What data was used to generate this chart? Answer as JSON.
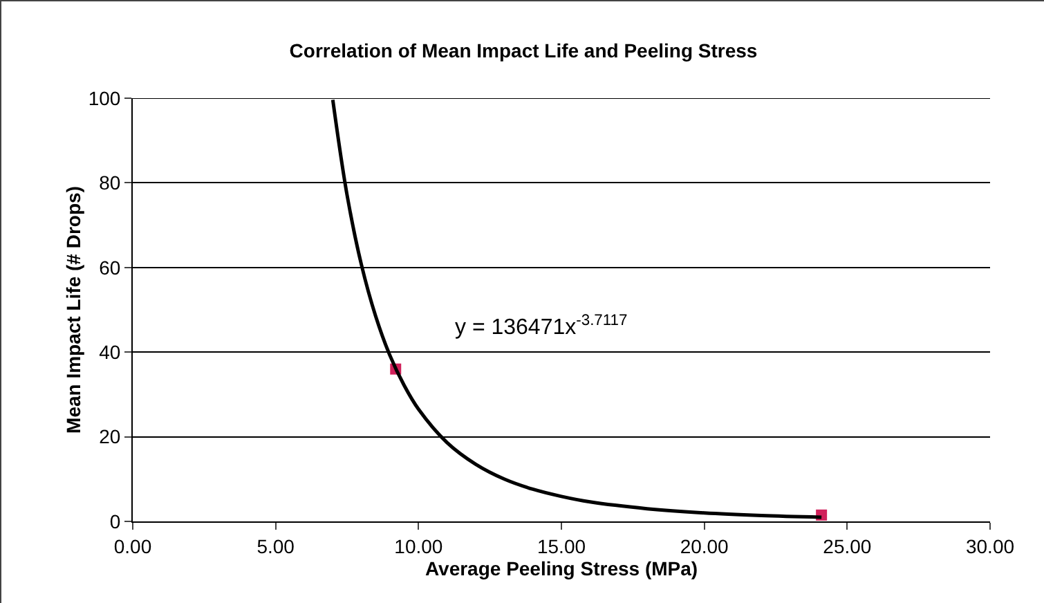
{
  "chart_data": {
    "type": "scatter",
    "title": "Correlation of Mean Impact Life and Peeling Stress",
    "xlabel": "Average Peeling Stress (MPa)",
    "ylabel": "Mean Impact Life (# Drops)",
    "series": [
      {
        "color": "#d0205a",
        "x": [
          9.2,
          24.1
        ],
        "values": [
          36,
          1.5
        ],
        "marker": "square"
      },
      {
        "type": "line",
        "color": "#000000",
        "x": [
          7.0,
          7.5,
          8,
          8.5,
          9,
          9.5,
          10,
          11,
          12,
          13,
          14,
          15,
          16,
          18,
          20,
          22,
          24.1
        ],
        "values": [
          99.6,
          77.1,
          60.7,
          48.5,
          39.2,
          32.1,
          26.5,
          18.6,
          13.5,
          10.0,
          7.6,
          5.9,
          4.6,
          3.0,
          2.0,
          1.4,
          1.0
        ],
        "marker": "none"
      }
    ],
    "annotations": [
      "y = 136471x$^{-3.7117}$"
    ],
    "xlim": [
      0,
      30
    ],
    "xticks": [
      {
        "value": 0,
        "label": "0.00"
      },
      {
        "value": 5,
        "label": "5.00"
      },
      {
        "value": 10,
        "label": "10.00"
      },
      {
        "value": 15,
        "label": "15.00"
      },
      {
        "value": 20,
        "label": "20.00"
      },
      {
        "value": 25,
        "label": "25.00"
      },
      {
        "value": 30,
        "label": "30.00"
      }
    ],
    "ylim": [
      0,
      100
    ],
    "yticks": [
      0,
      20,
      40,
      60,
      80,
      100
    ],
    "grid": "y"
  }
}
